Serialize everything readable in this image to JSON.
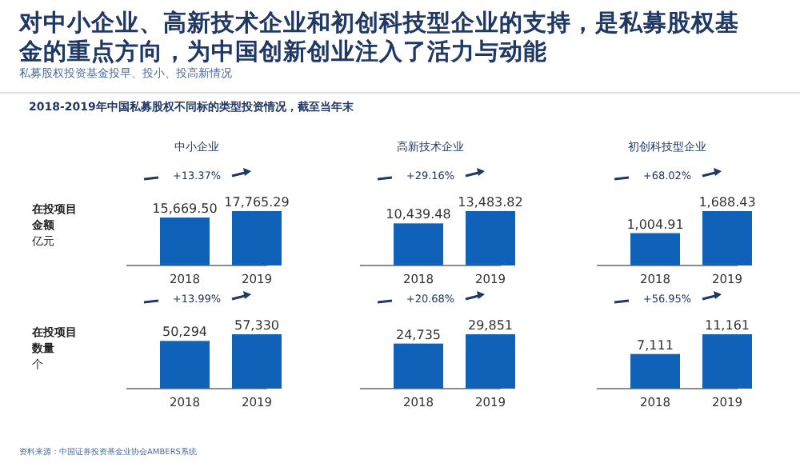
{
  "chart_data": [
    {
      "type": "bar",
      "title": "中小企业",
      "ylabel": "在投项目金额亿元",
      "categories": [
        "2018",
        "2019"
      ],
      "values": [
        15669.5,
        17765.29
      ],
      "value_labels": [
        "15,669.50",
        "17,765.29"
      ],
      "color": "#0f62b8",
      "annotations": [
        "+13.37%",
        "对中小企业、高新技术企业和初创科技型企业的支持，是私募股权基金的重点方向，为中国创新创业注入了活力与动能",
        "私募股权投资基金投早、投小、投高新情况",
        "2018-2019年中国私募股权不同标的类型投资情况，截至当年末"
      ]
    },
    {
      "type": "bar",
      "title": "高新技术企业",
      "categories": [
        "2018",
        "2019"
      ],
      "values": [
        10439.48,
        13483.82
      ],
      "value_labels": [
        "10,439.48",
        "13,483.82"
      ],
      "color": "#0f62b8",
      "annotations": [
        "+29.16%"
      ]
    },
    {
      "type": "bar",
      "title": "初创科技型企业",
      "categories": [
        "2018",
        "2019"
      ],
      "values": [
        1004.91,
        1688.43
      ],
      "value_labels": [
        "1,004.91",
        "1,688.43"
      ],
      "color": "#0f62b8",
      "annotations": [
        "+68.02%"
      ]
    },
    {
      "type": "bar",
      "ylabel": "在投项目数量个",
      "categories": [
        "2018",
        "2019"
      ],
      "values": [
        50294,
        57330
      ],
      "value_labels": [
        "50,294",
        "57,330"
      ],
      "color": "#0f62b8",
      "annotations": [
        "+13.99%"
      ]
    },
    {
      "type": "bar",
      "categories": [
        "2018",
        "2019"
      ],
      "values": [
        24735,
        29851
      ],
      "value_labels": [
        "24,735",
        "29,851"
      ],
      "color": "#0f62b8",
      "annotations": [
        "+20.68%"
      ]
    },
    {
      "type": "bar",
      "categories": [
        "2018",
        "2019"
      ],
      "values": [
        7111,
        11161
      ],
      "value_labels": [
        "7,111",
        "11,161"
      ],
      "color": "#0f62b8",
      "annotations": [
        "+56.95%",
        "资料来源：中国证券投资基金业协会AMBERS系统"
      ]
    }
  ]
}
